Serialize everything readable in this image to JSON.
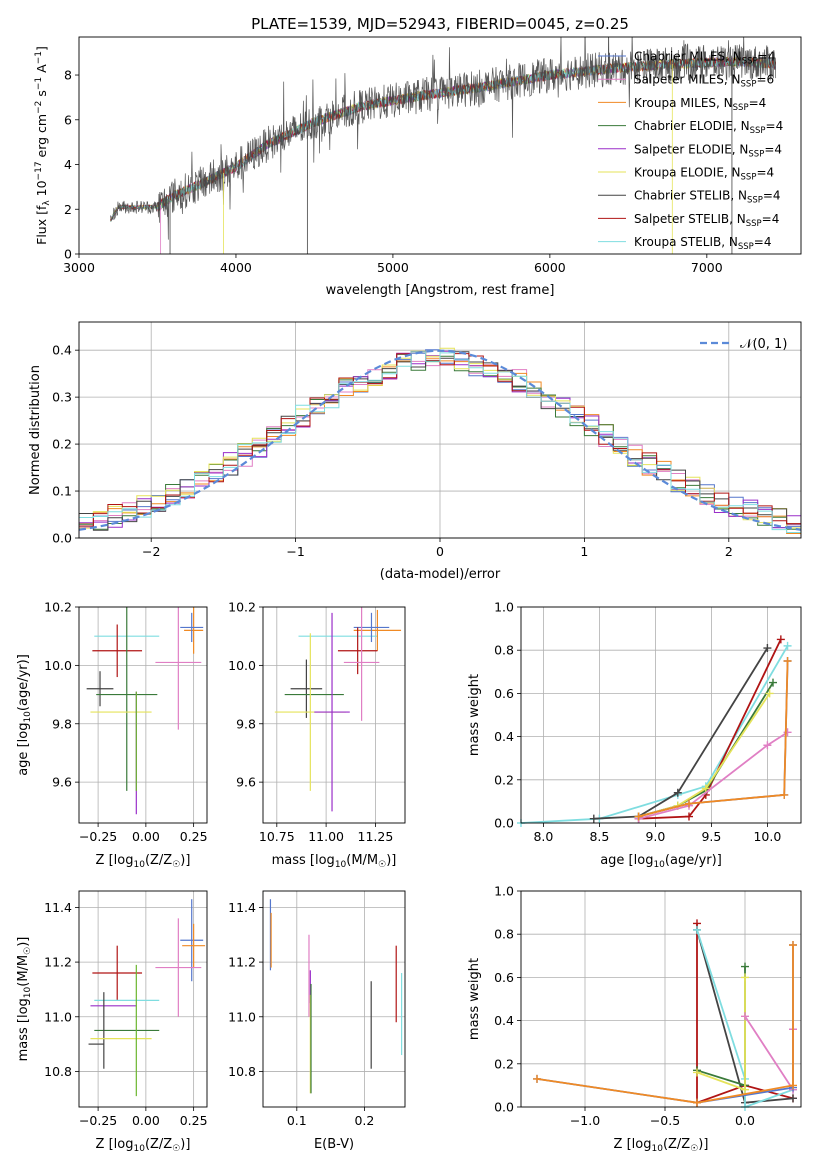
{
  "figure": {
    "title": "PLATE=1539, MJD=52943, FIBERID=0045, z=0.25"
  },
  "legend": [
    {
      "label": "Chabrier MILES, N",
      "sub": "SSP",
      "suffix": "=4",
      "color": "#5577cc"
    },
    {
      "label": "Salpeter MILES, N",
      "sub": "SSP",
      "suffix": "=6",
      "color": "#e07fc4"
    },
    {
      "label": "Kroupa MILES, N",
      "sub": "SSP",
      "suffix": "=4",
      "color": "#f08a24"
    },
    {
      "label": "Chabrier ELODIE, N",
      "sub": "SSP",
      "suffix": "=4",
      "color": "#3a7a3a"
    },
    {
      "label": "Salpeter ELODIE, N",
      "sub": "SSP",
      "suffix": "=4",
      "color": "#9a2fc9"
    },
    {
      "label": "Kroupa ELODIE, N",
      "sub": "SSP",
      "suffix": "=4",
      "color": "#e5e35a"
    },
    {
      "label": "Chabrier STELIB, N",
      "sub": "SSP",
      "suffix": "=4",
      "color": "#444444"
    },
    {
      "label": "Salpeter STELIB, N",
      "sub": "SSP",
      "suffix": "=4",
      "color": "#b01414"
    },
    {
      "label": "Kroupa STELIB, N",
      "sub": "SSP",
      "suffix": "=4",
      "color": "#7fdde0"
    }
  ],
  "hist_legend": {
    "label": "𝒩(0, 1)",
    "color": "#5b8ad8"
  },
  "chart_data": [
    {
      "id": "spectrum",
      "type": "line",
      "xlabel": "wavelength [Angstrom, rest frame]",
      "ylabel": "Flux [f  10  erg cm  s  A  ]",
      "ylabel_parts": {
        "a": "Flux [f",
        "b": "λ",
        "c": "10",
        "d": "−17",
        "e": " erg cm",
        "f": "−2",
        "g": " s",
        "h": "−1",
        "i": " A",
        "j": "−1",
        "k": "]"
      },
      "xlim": [
        3000,
        7600
      ],
      "ylim": [
        0,
        9.7
      ],
      "xticks": [
        3000,
        4000,
        5000,
        6000,
        7000
      ],
      "yticks": [
        0,
        2,
        4,
        6,
        8
      ],
      "grid": false,
      "x_start": 3200,
      "x_end": 7440,
      "continuum": [
        [
          3200,
          1.5
        ],
        [
          3250,
          2.1
        ],
        [
          3500,
          2.1
        ],
        [
          3600,
          2.6
        ],
        [
          3800,
          3.2
        ],
        [
          4000,
          3.9
        ],
        [
          4200,
          4.9
        ],
        [
          4500,
          5.9
        ],
        [
          4800,
          6.6
        ],
        [
          5200,
          7.1
        ],
        [
          5600,
          7.5
        ],
        [
          6000,
          8.0
        ],
        [
          6400,
          8.3
        ],
        [
          6800,
          8.5
        ],
        [
          7200,
          8.6
        ],
        [
          7440,
          8.5
        ]
      ]
    },
    {
      "id": "residual_hist",
      "type": "histogram",
      "xlabel": "(data-model)/error",
      "ylabel": "Normed distribution",
      "xlim": [
        -2.5,
        2.5
      ],
      "ylim": [
        0,
        0.46
      ],
      "xticks": [
        -2,
        -1,
        0,
        1,
        2
      ],
      "yticks": [
        0.0,
        0.1,
        0.2,
        0.3,
        0.4
      ],
      "grid": true,
      "bin_width": 0.1,
      "legend_loc": "upper right"
    },
    {
      "id": "age_vs_Z",
      "type": "errorbar",
      "xlabel": "Z [log10(Z/Z☉)]",
      "ylabel": "age  [log10(age/yr)]",
      "xlim": [
        -0.35,
        0.32
      ],
      "ylim": [
        9.46,
        10.2
      ],
      "xticks": [
        -0.25,
        0.0,
        0.25
      ],
      "yticks": [
        9.6,
        9.8,
        10.0,
        10.2
      ],
      "grid": true,
      "points": [
        {
          "x": -0.1,
          "y": 10.1,
          "xerr": 0.17,
          "yerr": 0.0,
          "color": "#7fdde0"
        },
        {
          "x": 0.25,
          "y": 10.12,
          "xerr": 0.05,
          "yerr": 0.08,
          "color": "#f08a24"
        },
        {
          "x": 0.24,
          "y": 10.13,
          "xerr": 0.06,
          "yerr": 0.05,
          "color": "#5577cc"
        },
        {
          "x": -0.15,
          "y": 10.05,
          "xerr": 0.13,
          "yerr": 0.09,
          "color": "#b01414"
        },
        {
          "x": 0.17,
          "y": 10.01,
          "xerr": 0.12,
          "yerr": 0.23,
          "color": "#e07fc4"
        },
        {
          "x": -0.24,
          "y": 9.92,
          "xerr": 0.07,
          "yerr": 0.06,
          "color": "#444444"
        },
        {
          "x": -0.1,
          "y": 9.9,
          "xerr": 0.16,
          "yerr": 0.33,
          "color": "#3a7a3a"
        },
        {
          "x": -0.13,
          "y": 9.84,
          "xerr": 0.16,
          "yerr": 0.0,
          "color": "#e5e35a"
        },
        {
          "x": -0.05,
          "y": 9.7,
          "xerr": 0.0,
          "yerr": 0.21,
          "color": "#9a2fc9"
        },
        {
          "x": -0.05,
          "y": 9.74,
          "xerr": 0.0,
          "yerr": 0.17,
          "color": "#6bb52e"
        }
      ]
    },
    {
      "id": "age_vs_mass",
      "type": "errorbar",
      "xlabel": "mass [log10(M/M☉)]",
      "ylabel": "",
      "xlim": [
        10.68,
        11.4
      ],
      "ylim": [
        9.46,
        10.2
      ],
      "xticks": [
        10.75,
        11.0,
        11.25
      ],
      "yticks": [
        9.6,
        9.8,
        10.0,
        10.2
      ],
      "grid": true,
      "points": [
        {
          "x": 11.06,
          "y": 10.1,
          "xerr": 0.2,
          "yerr": 0.0,
          "color": "#7fdde0"
        },
        {
          "x": 11.26,
          "y": 10.12,
          "xerr": 0.12,
          "yerr": 0.07,
          "color": "#f08a24"
        },
        {
          "x": 11.23,
          "y": 10.13,
          "xerr": 0.09,
          "yerr": 0.05,
          "color": "#5577cc"
        },
        {
          "x": 11.16,
          "y": 10.05,
          "xerr": 0.1,
          "yerr": 0.08,
          "color": "#b01414"
        },
        {
          "x": 11.18,
          "y": 10.01,
          "xerr": 0.09,
          "yerr": 0.2,
          "color": "#e07fc4"
        },
        {
          "x": 10.9,
          "y": 9.92,
          "xerr": 0.08,
          "yerr": 0.1,
          "color": "#444444"
        },
        {
          "x": 10.94,
          "y": 9.9,
          "xerr": 0.15,
          "yerr": 0.0,
          "color": "#3a7a3a"
        },
        {
          "x": 10.92,
          "y": 9.84,
          "xerr": 0.18,
          "yerr": 0.27,
          "color": "#e5e35a"
        },
        {
          "x": 11.03,
          "y": 9.84,
          "xerr": 0.09,
          "yerr": 0.34,
          "color": "#9a2fc9"
        }
      ]
    },
    {
      "id": "mass_weight_vs_age",
      "type": "line",
      "xlabel": "age  [log10(age/yr)]",
      "ylabel": "mass weight",
      "xlim": [
        7.8,
        10.3
      ],
      "ylim": [
        0,
        1
      ],
      "xticks": [
        8.0,
        8.5,
        9.0,
        9.5,
        10.0
      ],
      "yticks": [
        0.0,
        0.2,
        0.4,
        0.6,
        0.8,
        1.0
      ],
      "grid": true,
      "series": [
        {
          "color": "#7fdde0",
          "x": [
            7.8,
            8.5,
            9.2,
            9.45,
            10.18
          ],
          "y": [
            0.0,
            0.02,
            0.13,
            0.17,
            0.82
          ]
        },
        {
          "color": "#444444",
          "x": [
            8.45,
            8.85,
            9.2,
            10.0
          ],
          "y": [
            0.02,
            0.03,
            0.14,
            0.81
          ]
        },
        {
          "color": "#b01414",
          "x": [
            8.85,
            9.3,
            9.45,
            10.12
          ],
          "y": [
            0.02,
            0.03,
            0.13,
            0.85
          ]
        },
        {
          "color": "#3a7a3a",
          "x": [
            8.85,
            9.2,
            9.45,
            10.05
          ],
          "y": [
            0.03,
            0.08,
            0.15,
            0.65
          ]
        },
        {
          "color": "#e5e35a",
          "x": [
            8.85,
            9.2,
            9.45,
            10.02
          ],
          "y": [
            0.03,
            0.08,
            0.16,
            0.6
          ]
        },
        {
          "color": "#e07fc4",
          "x": [
            8.85,
            9.3,
            10.0,
            10.18
          ],
          "y": [
            0.02,
            0.08,
            0.36,
            0.42
          ]
        },
        {
          "color": "#5577cc",
          "x": [
            8.85,
            9.3,
            10.15,
            10.18
          ],
          "y": [
            0.03,
            0.09,
            0.13,
            0.75
          ]
        },
        {
          "color": "#f08a24",
          "x": [
            8.85,
            9.3,
            10.15,
            10.18
          ],
          "y": [
            0.03,
            0.09,
            0.13,
            0.75
          ]
        }
      ]
    },
    {
      "id": "mass_vs_Z",
      "type": "errorbar",
      "xlabel": "Z [log10(Z/Z☉)]",
      "ylabel": "mass [log10(M/M☉)]",
      "xlim": [
        -0.35,
        0.32
      ],
      "ylim": [
        10.67,
        11.46
      ],
      "xticks": [
        -0.25,
        0.0,
        0.25
      ],
      "yticks": [
        10.8,
        11.0,
        11.2,
        11.4
      ],
      "grid": true,
      "points": [
        {
          "x": 0.24,
          "y": 11.28,
          "xerr": 0.06,
          "yerr": 0.15,
          "color": "#5577cc"
        },
        {
          "x": 0.25,
          "y": 11.26,
          "xerr": 0.06,
          "yerr": 0.08,
          "color": "#f08a24"
        },
        {
          "x": 0.17,
          "y": 11.18,
          "xerr": 0.12,
          "yerr": 0.18,
          "color": "#e07fc4"
        },
        {
          "x": -0.15,
          "y": 11.16,
          "xerr": 0.13,
          "yerr": 0.1,
          "color": "#b01414"
        },
        {
          "x": -0.1,
          "y": 11.06,
          "xerr": 0.17,
          "yerr": 0.0,
          "color": "#7fdde0"
        },
        {
          "x": -0.17,
          "y": 11.04,
          "xerr": 0.12,
          "yerr": 0.0,
          "color": "#9a2fc9"
        },
        {
          "x": -0.1,
          "y": 10.95,
          "xerr": 0.17,
          "yerr": 0.0,
          "color": "#3a7a3a"
        },
        {
          "x": -0.22,
          "y": 10.95,
          "xerr": 0.0,
          "yerr": 0.14,
          "color": "#444444"
        },
        {
          "x": -0.13,
          "y": 10.92,
          "xerr": 0.16,
          "yerr": 0.0,
          "color": "#e5e35a"
        },
        {
          "x": -0.05,
          "y": 10.95,
          "xerr": 0.0,
          "yerr": 0.24,
          "color": "#6bb52e"
        },
        {
          "x": -0.26,
          "y": 10.9,
          "xerr": 0.04,
          "yerr": 0.0,
          "color": "#444444"
        }
      ]
    },
    {
      "id": "mass_vs_EBV",
      "type": "errorbar",
      "xlabel": "E(B-V)",
      "ylabel": "",
      "xlim": [
        0.05,
        0.26
      ],
      "ylim": [
        10.67,
        11.46
      ],
      "xticks": [
        0.1,
        0.2
      ],
      "yticks": [
        10.8,
        11.0,
        11.2,
        11.4
      ],
      "grid": true,
      "points": [
        {
          "x": 0.061,
          "y": 11.3,
          "xerr": 0.0,
          "yerr": 0.13,
          "color": "#5577cc"
        },
        {
          "x": 0.062,
          "y": 11.28,
          "xerr": 0.0,
          "yerr": 0.1,
          "color": "#f08a24"
        },
        {
          "x": 0.118,
          "y": 11.15,
          "xerr": 0.0,
          "yerr": 0.15,
          "color": "#e07fc4"
        },
        {
          "x": 0.12,
          "y": 11.11,
          "xerr": 0.0,
          "yerr": 0.06,
          "color": "#9a2fc9"
        },
        {
          "x": 0.12,
          "y": 10.9,
          "xerr": 0.0,
          "yerr": 0.18,
          "color": "#e5e35a"
        },
        {
          "x": 0.121,
          "y": 10.92,
          "xerr": 0.0,
          "yerr": 0.2,
          "color": "#3a7a3a"
        },
        {
          "x": 0.21,
          "y": 10.97,
          "xerr": 0.0,
          "yerr": 0.16,
          "color": "#444444"
        },
        {
          "x": 0.247,
          "y": 11.12,
          "xerr": 0.0,
          "yerr": 0.14,
          "color": "#b01414"
        },
        {
          "x": 0.255,
          "y": 11.01,
          "xerr": 0.0,
          "yerr": 0.15,
          "color": "#7fdde0"
        }
      ]
    },
    {
      "id": "mass_weight_vs_Z",
      "type": "line",
      "xlabel": "Z [log10(Z/Z☉)]",
      "ylabel": "mass weight",
      "xlim": [
        -1.4,
        0.35
      ],
      "ylim": [
        0,
        1
      ],
      "xticks": [
        -1.0,
        -0.5,
        0.0
      ],
      "yticks": [
        0.0,
        0.2,
        0.4,
        0.6,
        0.8,
        1.0
      ],
      "grid": true,
      "series": [
        {
          "color": "#b01414",
          "x": [
            -0.3,
            -0.3,
            0.0,
            0.3
          ],
          "y": [
            0.85,
            0.02,
            0.1,
            0.04
          ]
        },
        {
          "color": "#444444",
          "x": [
            -0.3,
            0.0,
            0.3
          ],
          "y": [
            0.82,
            0.02,
            0.04
          ]
        },
        {
          "color": "#7fdde0",
          "x": [
            -0.3,
            0.0,
            0.0,
            0.3
          ],
          "y": [
            0.82,
            0.13,
            0.0,
            0.08
          ]
        },
        {
          "color": "#3a7a3a",
          "x": [
            -0.3,
            0.0,
            0.0
          ],
          "y": [
            0.17,
            0.1,
            0.65
          ]
        },
        {
          "color": "#e5e35a",
          "x": [
            -0.3,
            0.0,
            0.0
          ],
          "y": [
            0.16,
            0.08,
            0.6
          ]
        },
        {
          "color": "#e07fc4",
          "x": [
            0.0,
            0.3,
            0.3
          ],
          "y": [
            0.42,
            0.08,
            0.36
          ]
        },
        {
          "color": "#5577cc",
          "x": [
            -1.3,
            -0.3,
            0.3,
            0.3
          ],
          "y": [
            0.13,
            0.02,
            0.09,
            0.75
          ]
        },
        {
          "color": "#f08a24",
          "x": [
            -1.3,
            -0.3,
            0.3,
            0.3
          ],
          "y": [
            0.13,
            0.02,
            0.1,
            0.75
          ]
        }
      ]
    }
  ]
}
